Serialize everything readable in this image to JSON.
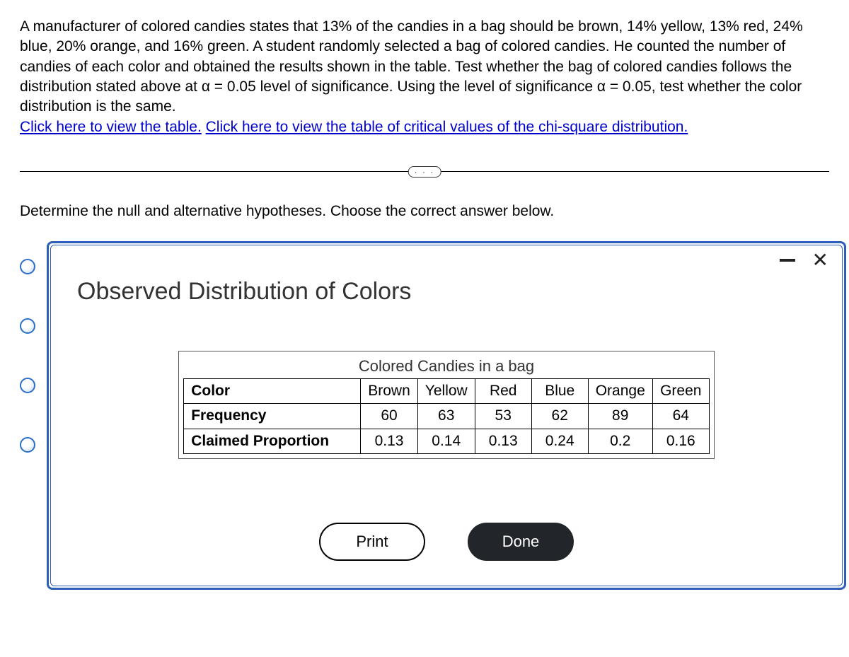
{
  "problem": {
    "text": "A manufacturer of colored candies states that 13% of the candies in a bag should be brown, 14% yellow, 13% red, 24% blue, 20% orange, and 16% green. A student randomly selected a bag of colored candies. He counted the number of candies of each color and obtained the results shown in the table. Test whether the bag of colored candies follows the distribution stated above at α = 0.05 level of significance. Using the level of significance α = 0.05, test whether the color distribution is the same.",
    "link1": "Click here to view the table.",
    "link2": "Click here to view the table of critical values of the chi-square distribution.",
    "divider_glyph": "· · ·",
    "subprompt": "Determine the null and alternative hypotheses. Choose the correct answer below."
  },
  "modal": {
    "title": "Observed Distribution of Colors",
    "minimize_label": "Minimize",
    "close_label": "Close",
    "table": {
      "caption": "Colored Candies in a bag",
      "row_labels": {
        "color": "Color",
        "freq": "Frequency",
        "claim": "Claimed Proportion"
      },
      "columns": [
        "Brown",
        "Yellow",
        "Red",
        "Blue",
        "Orange",
        "Green"
      ],
      "frequency": [
        60,
        63,
        53,
        62,
        89,
        64
      ],
      "claimed": [
        0.13,
        0.14,
        0.13,
        0.24,
        0.2,
        0.16
      ]
    },
    "buttons": {
      "print": "Print",
      "done": "Done"
    }
  },
  "style": {
    "link_color": "#0000cc",
    "modal_border": "#2b5fb8",
    "done_bg": "#22262b"
  }
}
